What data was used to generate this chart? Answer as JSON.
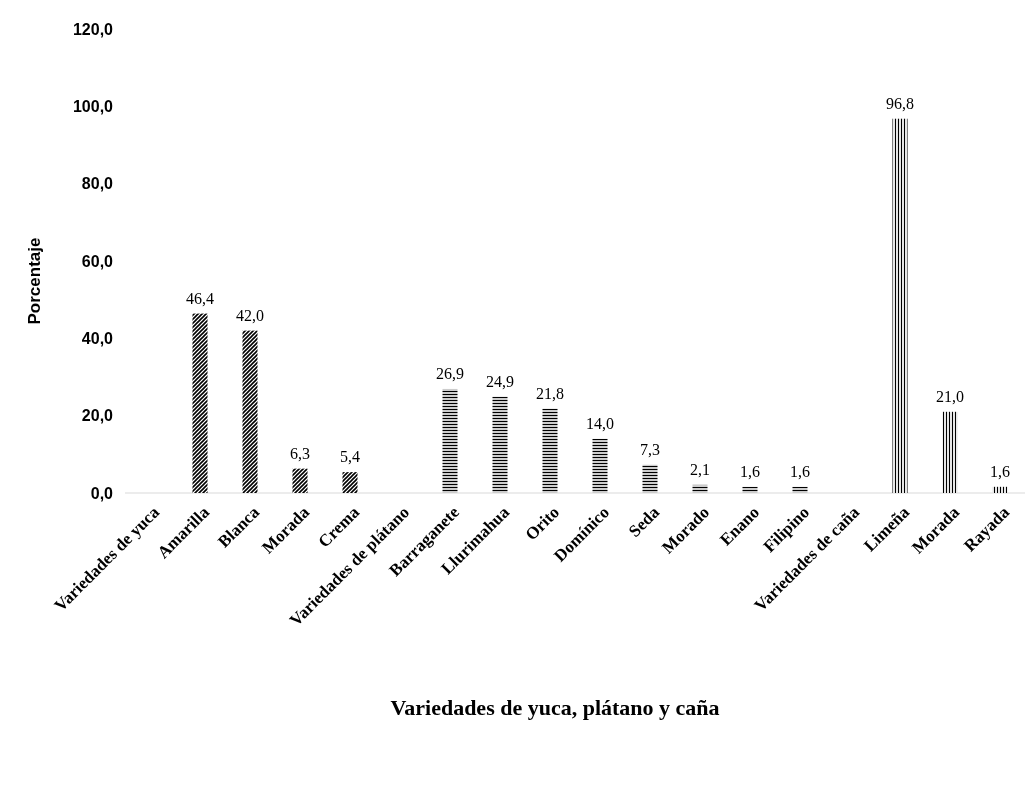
{
  "chart_data": {
    "type": "bar",
    "xlabel": "Variedades de yuca, plátano y caña",
    "ylabel": "Porcentaje",
    "categories": [
      "Variedades de yuca",
      "Amarilla",
      "Blanca",
      "Morada",
      "Crema",
      "Variedades de  plátano",
      "Barraganete",
      "Llurimahua",
      "Orito",
      "Domínico",
      "Seda",
      "Morado",
      "Enano",
      "Filipino",
      "Variedades de caña",
      "Limeña",
      "Morada",
      "Rayada"
    ],
    "series": [
      {
        "color": "#000000",
        "values": [
          null,
          46.4,
          42.0,
          6.3,
          5.4,
          null,
          null,
          null,
          null,
          null,
          null,
          null,
          null,
          null,
          null,
          null,
          null,
          null
        ],
        "value_labels": [
          null,
          "46,4",
          "42,0",
          "6,3",
          "5,4",
          null,
          null,
          null,
          null,
          null,
          null,
          null,
          null,
          null,
          null,
          null,
          null,
          null
        ]
      },
      {
        "color": "#000000",
        "values": [
          null,
          null,
          null,
          null,
          null,
          null,
          26.9,
          24.9,
          21.8,
          14.0,
          7.3,
          2.1,
          1.6,
          1.6,
          null,
          null,
          null,
          null
        ],
        "value_labels": [
          null,
          null,
          null,
          null,
          null,
          null,
          "26,9",
          "24,9",
          "21,8",
          "14,0",
          "7,3",
          "2,1",
          "1,6",
          "1,6",
          null,
          null,
          null,
          null
        ]
      },
      {
        "color": "#000000",
        "values": [
          null,
          null,
          null,
          null,
          null,
          null,
          null,
          null,
          null,
          null,
          null,
          null,
          null,
          null,
          null,
          96.8,
          21.0,
          1.6
        ],
        "value_labels": [
          null,
          null,
          null,
          null,
          null,
          null,
          null,
          null,
          null,
          null,
          null,
          null,
          null,
          null,
          null,
          "96,8",
          "21,0",
          "1,6"
        ]
      }
    ],
    "ylim": [
      0,
      120
    ],
    "yticks": [
      {
        "value": 0,
        "label": "0,0"
      },
      {
        "value": 20,
        "label": "20,0"
      },
      {
        "value": 40,
        "label": "40,0"
      },
      {
        "value": 60,
        "label": "60,0"
      },
      {
        "value": 80,
        "label": "80,0"
      },
      {
        "value": 100,
        "label": "100,0"
      },
      {
        "value": 120,
        "label": "120,0"
      }
    ],
    "grid": false
  }
}
